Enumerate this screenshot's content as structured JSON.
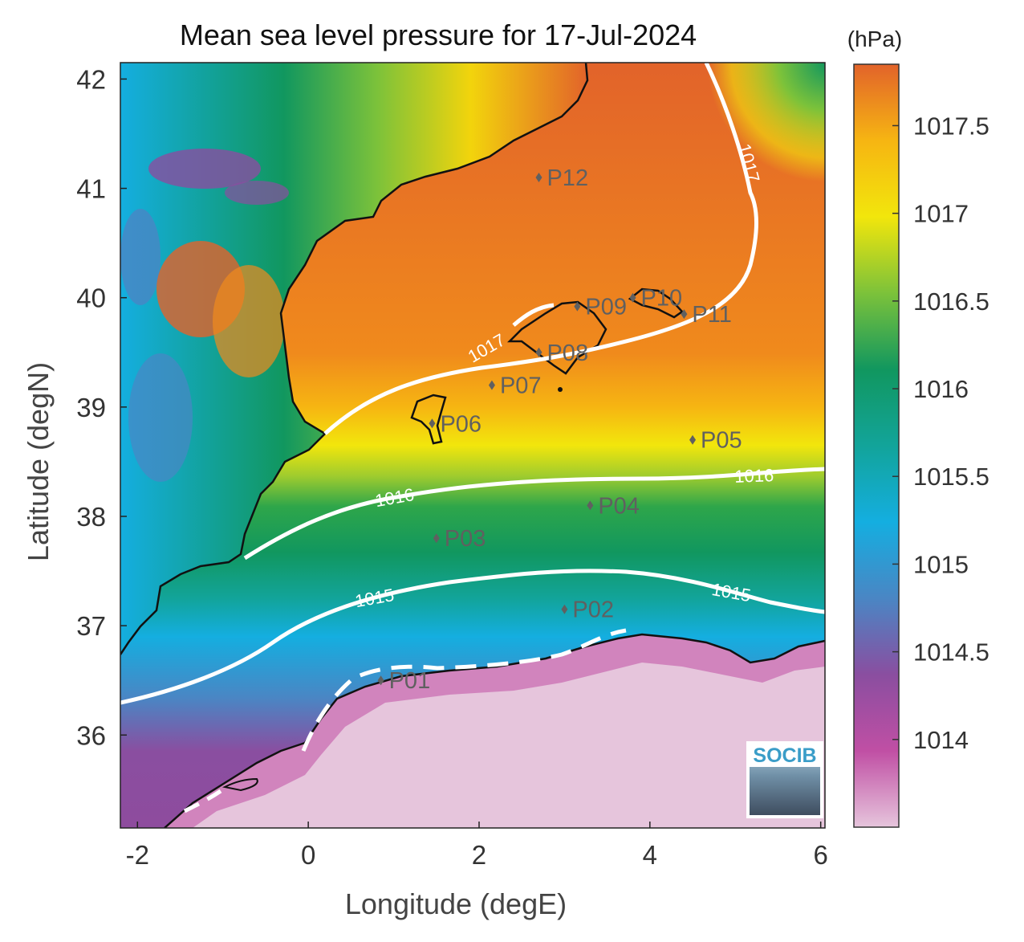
{
  "title": "Mean sea level pressure for 17-Jul-2024",
  "x_axis": {
    "label": "Longitude (degE)",
    "ticks": [
      "-2",
      "0",
      "2",
      "4",
      "6"
    ],
    "range": [
      -2.2,
      6.05
    ]
  },
  "y_axis": {
    "label": "Latitude (degN)",
    "ticks": [
      "36",
      "37",
      "38",
      "39",
      "40",
      "41",
      "42"
    ],
    "range": [
      35.15,
      42.15
    ]
  },
  "colorbar": {
    "unit": "(hPa)",
    "range": [
      1013.5,
      1017.85
    ],
    "ticks": [
      "1014",
      "1014.5",
      "1015",
      "1015.5",
      "1016",
      "1016.5",
      "1017",
      "1017.5"
    ],
    "tick_values": [
      1014,
      1014.5,
      1015,
      1015.5,
      1016,
      1016.5,
      1017,
      1017.5
    ],
    "colors": [
      "#e6c5dc",
      "#c04fa4",
      "#8a4ea0",
      "#4a86c4",
      "#14aee0",
      "#12a49a",
      "#11975f",
      "#7cc23a",
      "#f2e60c",
      "#f6b512",
      "#e2632a"
    ]
  },
  "contours": [
    {
      "label": "1017",
      "value": 1017
    },
    {
      "label": "1016",
      "value": 1016
    },
    {
      "label": "1015",
      "value": 1015
    }
  ],
  "stations": [
    {
      "label": "P01",
      "lon": 0.85,
      "lat": 36.5
    },
    {
      "label": "P02",
      "lon": 3.0,
      "lat": 37.15
    },
    {
      "label": "P03",
      "lon": 1.5,
      "lat": 37.8
    },
    {
      "label": "P04",
      "lon": 3.3,
      "lat": 38.1
    },
    {
      "label": "P05",
      "lon": 4.5,
      "lat": 38.7
    },
    {
      "label": "P06",
      "lon": 1.45,
      "lat": 38.85
    },
    {
      "label": "P07",
      "lon": 2.15,
      "lat": 39.2
    },
    {
      "label": "P08",
      "lon": 2.7,
      "lat": 39.5
    },
    {
      "label": "P09",
      "lon": 3.15,
      "lat": 39.92
    },
    {
      "label": "P10",
      "lon": 3.8,
      "lat": 40.0
    },
    {
      "label": "P11",
      "lon": 4.4,
      "lat": 39.85
    },
    {
      "label": "P12",
      "lon": 2.7,
      "lat": 41.1
    }
  ],
  "logo": {
    "text": "SOCIB"
  }
}
